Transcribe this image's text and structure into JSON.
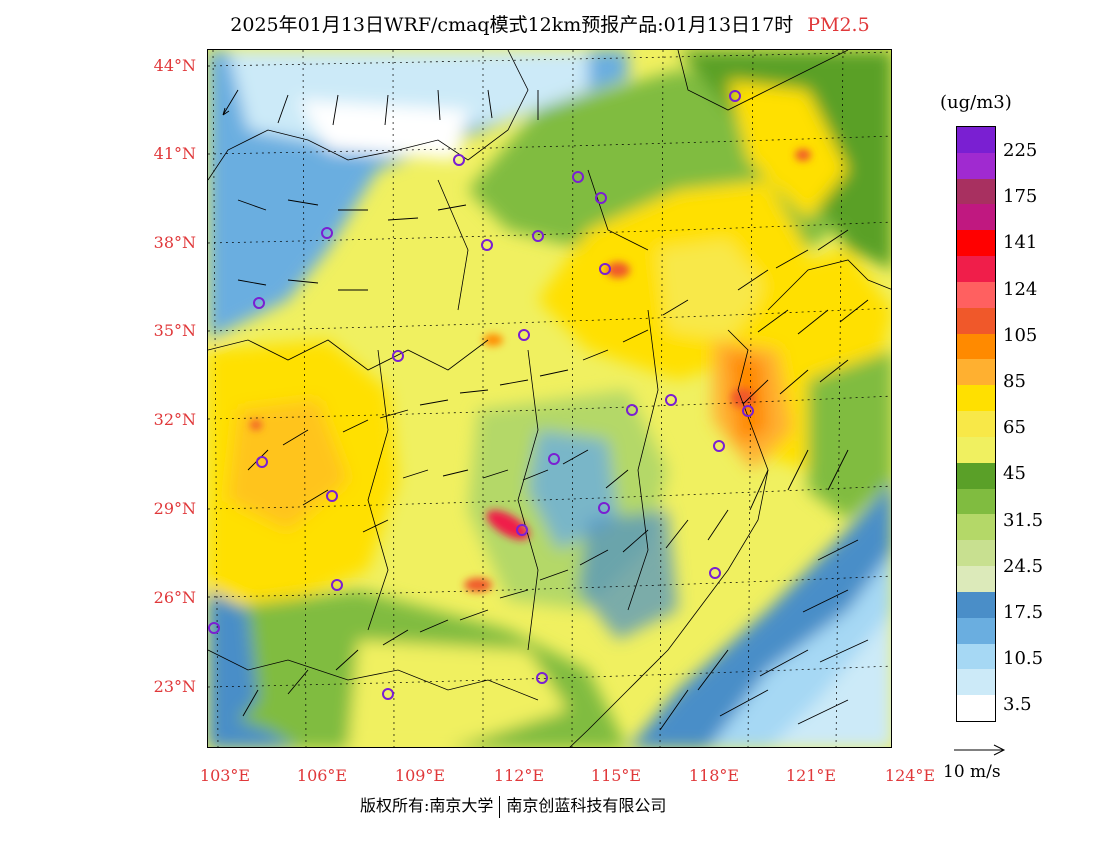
{
  "title": {
    "main": "2025年01月13日WRF/cmaq模式12km预报产品:01月13日17时",
    "pollutant": "PM2.5"
  },
  "map": {
    "lat_labels": [
      "44°N",
      "41°N",
      "38°N",
      "35°N",
      "32°N",
      "29°N",
      "26°N",
      "23°N"
    ],
    "lon_labels": [
      "103°E",
      "106°E",
      "109°E",
      "112°E",
      "115°E",
      "118°E",
      "121°E",
      "124°E"
    ],
    "lat_range": [
      21.0,
      44.6
    ],
    "lon_range": [
      102.8,
      124.0
    ]
  },
  "legend": {
    "unit": "(ug/m3)",
    "levels": [
      "225",
      "175",
      "141",
      "124",
      "105",
      "85",
      "65",
      "45",
      "31.5",
      "24.5",
      "17.5",
      "10.5",
      "3.5"
    ],
    "colors": [
      "#7a1fd2",
      "#a02ad0",
      "#a83060",
      "#c01880",
      "#ff0000",
      "#f01e4a",
      "#ff6060",
      "#f0582a",
      "#ff8a00",
      "#ffb030",
      "#ffe000",
      "#f8e848",
      "#f0f060",
      "#5aa028",
      "#80bc40",
      "#b4d868",
      "#c8e090",
      "#dceaba",
      "#4a8ec8",
      "#6aaee0",
      "#a6d8f4",
      "#cceaf8",
      "#ffffff"
    ]
  },
  "wind_ref": {
    "label": "10 m/s"
  },
  "footer": {
    "left": "版权所有:南京大学",
    "right": "南京创蓝科技有限公司"
  }
}
